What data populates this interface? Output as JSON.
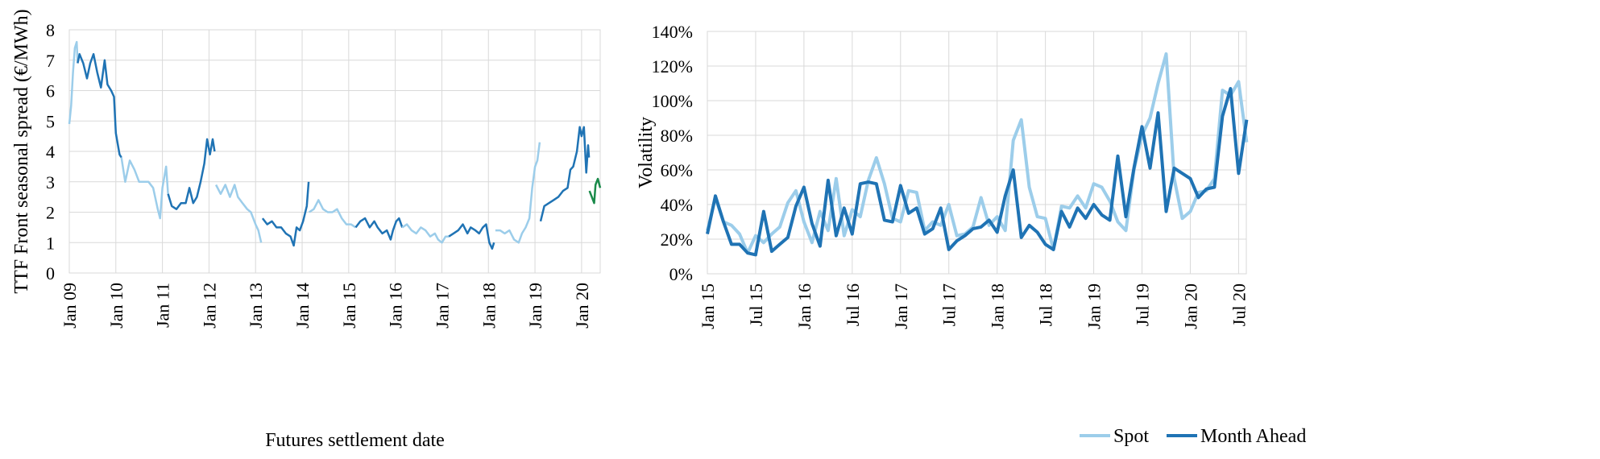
{
  "chart_data": [
    {
      "type": "line",
      "title": "",
      "xlabel": "Futures settlement date",
      "ylabel": "TTF Front seasonal spread (€/MWh)",
      "ylim": [
        0,
        8
      ],
      "yticks": [
        0,
        1,
        2,
        3,
        4,
        5,
        6,
        7,
        8
      ],
      "xlim": [
        2009.0,
        2020.4
      ],
      "xticks": [
        {
          "x": 2009,
          "label": "Jan 09"
        },
        {
          "x": 2010,
          "label": "Jan 10"
        },
        {
          "x": 2011,
          "label": "Jan 11"
        },
        {
          "x": 2012,
          "label": "Jan 12"
        },
        {
          "x": 2013,
          "label": "Jan 13"
        },
        {
          "x": 2014,
          "label": "Jan 14"
        },
        {
          "x": 2015,
          "label": "Jan 15"
        },
        {
          "x": 2016,
          "label": "Jan 16"
        },
        {
          "x": 2017,
          "label": "Jan 17"
        },
        {
          "x": 2018,
          "label": "Jan 18"
        },
        {
          "x": 2019,
          "label": "Jan 19"
        },
        {
          "x": 2020,
          "label": "Jan 20"
        }
      ],
      "grid": true,
      "colors": {
        "light": "#9ccdea",
        "dark": "#1f73b4",
        "green": "#1a8a4a"
      },
      "segments": [
        {
          "color": "light",
          "points": [
            [
              2009.0,
              4.9
            ],
            [
              2009.04,
              5.5
            ],
            [
              2009.08,
              6.6
            ],
            [
              2009.12,
              7.4
            ],
            [
              2009.16,
              7.6
            ],
            [
              2009.18,
              6.9
            ]
          ]
        },
        {
          "color": "dark",
          "points": [
            [
              2009.18,
              6.9
            ],
            [
              2009.22,
              7.2
            ],
            [
              2009.3,
              6.9
            ],
            [
              2009.38,
              6.4
            ],
            [
              2009.45,
              6.9
            ],
            [
              2009.52,
              7.2
            ],
            [
              2009.6,
              6.6
            ],
            [
              2009.68,
              6.1
            ],
            [
              2009.76,
              7.0
            ],
            [
              2009.82,
              6.2
            ],
            [
              2009.9,
              6.0
            ],
            [
              2009.96,
              5.8
            ],
            [
              2010.0,
              4.6
            ],
            [
              2010.08,
              3.9
            ],
            [
              2010.12,
              3.8
            ]
          ]
        },
        {
          "color": "light",
          "points": [
            [
              2010.12,
              3.8
            ],
            [
              2010.2,
              3.0
            ],
            [
              2010.3,
              3.7
            ],
            [
              2010.4,
              3.4
            ],
            [
              2010.5,
              3.0
            ],
            [
              2010.6,
              3.0
            ],
            [
              2010.7,
              3.0
            ],
            [
              2010.8,
              2.8
            ],
            [
              2010.9,
              2.1
            ],
            [
              2010.95,
              1.8
            ],
            [
              2011.0,
              2.8
            ],
            [
              2011.08,
              3.5
            ],
            [
              2011.12,
              2.6
            ]
          ]
        },
        {
          "color": "dark",
          "points": [
            [
              2011.12,
              2.6
            ],
            [
              2011.2,
              2.2
            ],
            [
              2011.3,
              2.1
            ],
            [
              2011.4,
              2.3
            ],
            [
              2011.5,
              2.3
            ],
            [
              2011.58,
              2.8
            ],
            [
              2011.66,
              2.3
            ],
            [
              2011.74,
              2.5
            ],
            [
              2011.82,
              3.0
            ],
            [
              2011.9,
              3.6
            ],
            [
              2011.96,
              4.4
            ],
            [
              2012.02,
              3.9
            ],
            [
              2012.08,
              4.4
            ],
            [
              2012.12,
              4.0
            ]
          ]
        },
        {
          "color": "light",
          "points": [
            [
              2012.15,
              2.9
            ],
            [
              2012.25,
              2.6
            ],
            [
              2012.35,
              2.9
            ],
            [
              2012.45,
              2.5
            ],
            [
              2012.55,
              2.9
            ],
            [
              2012.62,
              2.5
            ],
            [
              2012.72,
              2.3
            ],
            [
              2012.82,
              2.1
            ],
            [
              2012.9,
              2.0
            ],
            [
              2013.0,
              1.6
            ],
            [
              2013.06,
              1.4
            ],
            [
              2013.12,
              1.0
            ]
          ]
        },
        {
          "color": "dark",
          "points": [
            [
              2013.15,
              1.8
            ],
            [
              2013.25,
              1.6
            ],
            [
              2013.35,
              1.7
            ],
            [
              2013.45,
              1.5
            ],
            [
              2013.55,
              1.5
            ],
            [
              2013.65,
              1.3
            ],
            [
              2013.75,
              1.2
            ],
            [
              2013.82,
              0.9
            ],
            [
              2013.88,
              1.5
            ],
            [
              2013.95,
              1.4
            ],
            [
              2014.02,
              1.7
            ],
            [
              2014.1,
              2.2
            ],
            [
              2014.14,
              3.0
            ]
          ]
        },
        {
          "color": "light",
          "points": [
            [
              2014.15,
              2.0
            ],
            [
              2014.25,
              2.1
            ],
            [
              2014.35,
              2.4
            ],
            [
              2014.45,
              2.1
            ],
            [
              2014.55,
              2.0
            ],
            [
              2014.65,
              2.0
            ],
            [
              2014.75,
              2.1
            ],
            [
              2014.85,
              1.8
            ],
            [
              2014.95,
              1.6
            ],
            [
              2015.05,
              1.6
            ],
            [
              2015.15,
              1.5
            ]
          ]
        },
        {
          "color": "dark",
          "points": [
            [
              2015.15,
              1.5
            ],
            [
              2015.25,
              1.7
            ],
            [
              2015.35,
              1.8
            ],
            [
              2015.45,
              1.5
            ],
            [
              2015.55,
              1.7
            ],
            [
              2015.62,
              1.5
            ],
            [
              2015.72,
              1.3
            ],
            [
              2015.82,
              1.4
            ],
            [
              2015.9,
              1.1
            ],
            [
              2015.95,
              1.4
            ],
            [
              2016.02,
              1.7
            ],
            [
              2016.08,
              1.8
            ],
            [
              2016.15,
              1.5
            ]
          ]
        },
        {
          "color": "light",
          "points": [
            [
              2016.15,
              1.5
            ],
            [
              2016.25,
              1.6
            ],
            [
              2016.35,
              1.4
            ],
            [
              2016.45,
              1.3
            ],
            [
              2016.55,
              1.5
            ],
            [
              2016.65,
              1.4
            ],
            [
              2016.75,
              1.2
            ],
            [
              2016.85,
              1.3
            ],
            [
              2016.92,
              1.1
            ],
            [
              2017.0,
              1.0
            ],
            [
              2017.08,
              1.2
            ],
            [
              2017.15,
              1.2
            ]
          ]
        },
        {
          "color": "dark",
          "points": [
            [
              2017.15,
              1.2
            ],
            [
              2017.25,
              1.3
            ],
            [
              2017.35,
              1.4
            ],
            [
              2017.45,
              1.6
            ],
            [
              2017.55,
              1.3
            ],
            [
              2017.62,
              1.5
            ],
            [
              2017.72,
              1.4
            ],
            [
              2017.8,
              1.3
            ],
            [
              2017.88,
              1.5
            ],
            [
              2017.95,
              1.6
            ],
            [
              2018.02,
              1.0
            ],
            [
              2018.08,
              0.8
            ],
            [
              2018.12,
              1.0
            ]
          ]
        },
        {
          "color": "light",
          "points": [
            [
              2018.15,
              1.4
            ],
            [
              2018.25,
              1.4
            ],
            [
              2018.35,
              1.3
            ],
            [
              2018.45,
              1.4
            ],
            [
              2018.55,
              1.1
            ],
            [
              2018.65,
              1.0
            ],
            [
              2018.72,
              1.3
            ],
            [
              2018.8,
              1.5
            ],
            [
              2018.88,
              1.8
            ],
            [
              2018.94,
              2.8
            ],
            [
              2019.0,
              3.5
            ],
            [
              2019.05,
              3.7
            ],
            [
              2019.1,
              4.3
            ]
          ]
        },
        {
          "color": "dark",
          "points": [
            [
              2019.12,
              1.7
            ],
            [
              2019.2,
              2.2
            ],
            [
              2019.3,
              2.3
            ],
            [
              2019.4,
              2.4
            ],
            [
              2019.5,
              2.5
            ],
            [
              2019.6,
              2.7
            ],
            [
              2019.7,
              2.8
            ],
            [
              2019.76,
              3.4
            ],
            [
              2019.82,
              3.5
            ],
            [
              2019.9,
              4.0
            ],
            [
              2019.96,
              4.8
            ],
            [
              2020.0,
              4.5
            ],
            [
              2020.05,
              4.8
            ],
            [
              2020.1,
              3.3
            ],
            [
              2020.14,
              4.2
            ],
            [
              2020.16,
              3.8
            ]
          ]
        },
        {
          "color": "green",
          "points": [
            [
              2020.17,
              2.7
            ],
            [
              2020.22,
              2.5
            ],
            [
              2020.27,
              2.3
            ],
            [
              2020.3,
              2.9
            ],
            [
              2020.35,
              3.1
            ],
            [
              2020.4,
              2.8
            ]
          ]
        }
      ]
    },
    {
      "type": "line",
      "title": "",
      "xlabel": "",
      "ylabel": "Volatility",
      "ylim": [
        0,
        140
      ],
      "yticks": [
        {
          "v": 0,
          "label": "0%"
        },
        {
          "v": 20,
          "label": "20%"
        },
        {
          "v": 40,
          "label": "40%"
        },
        {
          "v": 60,
          "label": "60%"
        },
        {
          "v": 80,
          "label": "80%"
        },
        {
          "v": 100,
          "label": "100%"
        },
        {
          "v": 120,
          "label": "120%"
        },
        {
          "v": 140,
          "label": "140%"
        }
      ],
      "xlim": [
        2015.0,
        2020.58
      ],
      "xticks": [
        {
          "x": 2015.0,
          "label": "Jan 15"
        },
        {
          "x": 2015.5,
          "label": "Jul 15"
        },
        {
          "x": 2016.0,
          "label": "Jan 16"
        },
        {
          "x": 2016.5,
          "label": "Jul 16"
        },
        {
          "x": 2017.0,
          "label": "Jan 17"
        },
        {
          "x": 2017.5,
          "label": "Jul 17"
        },
        {
          "x": 2018.0,
          "label": "Jan 18"
        },
        {
          "x": 2018.5,
          "label": "Jul 18"
        },
        {
          "x": 2019.0,
          "label": "Jan 19"
        },
        {
          "x": 2019.5,
          "label": "Jul 19"
        },
        {
          "x": 2020.0,
          "label": "Jan 20"
        },
        {
          "x": 2020.5,
          "label": "Jul 20"
        }
      ],
      "grid": true,
      "legend_position": "bottom",
      "series": [
        {
          "name": "Spot",
          "color": "#9ccdea",
          "start": 2015.0,
          "step_months": 1,
          "values": [
            25,
            44,
            30,
            28,
            23,
            12,
            22,
            18,
            23,
            27,
            41,
            48,
            30,
            18,
            36,
            25,
            55,
            22,
            37,
            33,
            54,
            67,
            52,
            32,
            30,
            48,
            47,
            25,
            30,
            28,
            40,
            22,
            23,
            27,
            44,
            28,
            33,
            25,
            77,
            89,
            50,
            33,
            32,
            14,
            39,
            38,
            45,
            38,
            52,
            50,
            42,
            30,
            25,
            60,
            80,
            90,
            110,
            127,
            55,
            32,
            36,
            47,
            48,
            55,
            106,
            103,
            111,
            76
          ]
        },
        {
          "name": "Month Ahead",
          "color": "#1f73b4",
          "start": 2015.0,
          "step_months": 1,
          "values": [
            23,
            45,
            30,
            17,
            17,
            12,
            11,
            36,
            13,
            17,
            21,
            39,
            50,
            29,
            16,
            54,
            22,
            38,
            23,
            52,
            53,
            52,
            31,
            30,
            51,
            35,
            38,
            23,
            26,
            38,
            14,
            19,
            22,
            26,
            27,
            31,
            24,
            45,
            60,
            21,
            28,
            24,
            17,
            14,
            36,
            27,
            38,
            32,
            40,
            34,
            31,
            68,
            33,
            61,
            85,
            61,
            93,
            36,
            61,
            58,
            55,
            44,
            49,
            50,
            91,
            107,
            58,
            89
          ]
        }
      ]
    }
  ]
}
